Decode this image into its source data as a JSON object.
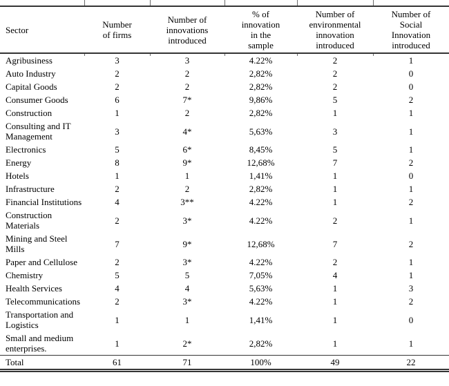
{
  "table": {
    "columns": [
      {
        "label": "Sector"
      },
      {
        "label": "Number\nof firms"
      },
      {
        "label": "Number of\ninnovations\nintroduced"
      },
      {
        "label": "% of\ninnovation\nin the\nsample"
      },
      {
        "label": "Number of\nenvironmental\ninnovation\nintroduced"
      },
      {
        "label": "Number of\nSocial\nInnovation\nintroduced"
      }
    ],
    "rows": [
      {
        "sector": "Agribusiness",
        "firms": "3",
        "innovations": "3",
        "pct": "4.22%",
        "environmental": "2",
        "social": "1"
      },
      {
        "sector": "Auto Industry",
        "firms": "2",
        "innovations": "2",
        "pct": "2,82%",
        "environmental": "2",
        "social": "0"
      },
      {
        "sector": "Capital Goods",
        "firms": "2",
        "innovations": "2",
        "pct": "2,82%",
        "environmental": "2",
        "social": "0"
      },
      {
        "sector": "Consumer Goods",
        "firms": "6",
        "innovations": "7*",
        "pct": "9,86%",
        "environmental": "5",
        "social": "2"
      },
      {
        "sector": "Construction",
        "firms": "1",
        "innovations": "2",
        "pct": "2,82%",
        "environmental": "1",
        "social": "1"
      },
      {
        "sector": "Consulting and IT Management",
        "firms": "3",
        "innovations": "4*",
        "pct": "5,63%",
        "environmental": "3",
        "social": "1"
      },
      {
        "sector": "Electronics",
        "firms": "5",
        "innovations": "6*",
        "pct": "8,45%",
        "environmental": "5",
        "social": "1"
      },
      {
        "sector": "Energy",
        "firms": "8",
        "innovations": "9*",
        "pct": "12,68%",
        "environmental": "7",
        "social": "2"
      },
      {
        "sector": "Hotels",
        "firms": "1",
        "innovations": "1",
        "pct": "1,41%",
        "environmental": "1",
        "social": "0"
      },
      {
        "sector": "Infrastructure",
        "firms": "2",
        "innovations": "2",
        "pct": "2,82%",
        "environmental": "1",
        "social": "1"
      },
      {
        "sector": "Financial Institutions",
        "firms": "4",
        "innovations": "3**",
        "pct": "4.22%",
        "environmental": "1",
        "social": "2"
      },
      {
        "sector": "Construction Materials",
        "firms": "2",
        "innovations": "3*",
        "pct": "4.22%",
        "environmental": "2",
        "social": "1"
      },
      {
        "sector": "Mining and Steel Mills",
        "firms": "7",
        "innovations": "9*",
        "pct": "12,68%",
        "environmental": "7",
        "social": "2"
      },
      {
        "sector": "Paper and Cellulose",
        "firms": "2",
        "innovations": "3*",
        "pct": "4.22%",
        "environmental": "2",
        "social": "1"
      },
      {
        "sector": "Chemistry",
        "firms": "5",
        "innovations": "5",
        "pct": "7,05%",
        "environmental": "4",
        "social": "1"
      },
      {
        "sector": "Health Services",
        "firms": "4",
        "innovations": "4",
        "pct": "5,63%",
        "environmental": "1",
        "social": "3"
      },
      {
        "sector": "Telecommunications",
        "firms": "2",
        "innovations": "3*",
        "pct": "4.22%",
        "environmental": "1",
        "social": "2"
      },
      {
        "sector": "Transportation and Logistics",
        "firms": "1",
        "innovations": "1",
        "pct": "1,41%",
        "environmental": "1",
        "social": "0"
      },
      {
        "sector": "Small and medium enterprises.",
        "firms": "1",
        "innovations": "2*",
        "pct": "2,82%",
        "environmental": "1",
        "social": "1"
      },
      {
        "sector": "Total",
        "firms": "61",
        "innovations": "71",
        "pct": "100%",
        "environmental": "49",
        "social": "22"
      }
    ]
  }
}
